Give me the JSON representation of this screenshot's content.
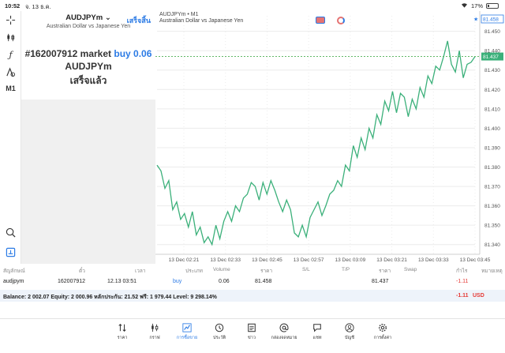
{
  "statusbar": {
    "time": "10:52",
    "date": "จ. 13 ธ.ค.",
    "battery": "17%"
  },
  "panel": {
    "symbol": "AUDJPYm",
    "description": "Australian Dollar vs Japanese Yen",
    "done_label": "เสร็จสิ้น",
    "order_prefix": "#162007912 market",
    "order_type": "buy",
    "order_volume": "0.06",
    "order_symbol": "AUDJPYm",
    "order_status": "เสร็จแล้ว"
  },
  "toolbar": {
    "timeframe": "M1"
  },
  "chart": {
    "title": "AUDJPYm • M1",
    "subtitle": "Australian Dollar vs Japanese Yen",
    "current_price": "81.437",
    "top_price_tag": "81.458",
    "colors": {
      "line": "#3bb07a",
      "grid": "#ececec",
      "price_line": "#4caf50",
      "tag": "#3bb07a"
    }
  },
  "chart_data": {
    "type": "line",
    "title": "",
    "xlabel": "",
    "ylabel": "",
    "x_ticks": [
      "13 Dec 02:21",
      "13 Dec 02:33",
      "13 Dec 02:45",
      "13 Dec 02:57",
      "13 Dec 03:09",
      "13 Dec 03:21",
      "13 Dec 03:33",
      "13 Dec 03:45"
    ],
    "y_ticks": [
      "81.450",
      "81.440",
      "81.430",
      "81.420",
      "81.410",
      "81.400",
      "81.390",
      "81.380",
      "81.370",
      "81.360",
      "81.350",
      "81.340"
    ],
    "ylim": [
      81.335,
      81.458
    ],
    "series": [
      {
        "values": [
          81.381,
          81.378,
          81.369,
          81.373,
          81.358,
          81.362,
          81.353,
          81.356,
          81.349,
          81.357,
          81.345,
          81.349,
          81.341,
          81.344,
          81.34,
          81.35,
          81.343,
          81.352,
          81.357,
          81.352,
          81.36,
          81.357,
          81.364,
          81.366,
          81.372,
          81.37,
          81.363,
          81.372,
          81.366,
          81.373,
          81.368,
          81.362,
          81.357,
          81.363,
          81.358,
          81.346,
          81.344,
          81.35,
          81.344,
          81.354,
          81.358,
          81.362,
          81.355,
          81.36,
          81.366,
          81.368,
          81.373,
          81.37,
          81.381,
          81.378,
          81.391,
          81.385,
          81.395,
          81.389,
          81.4,
          81.395,
          81.407,
          81.402,
          81.414,
          81.409,
          81.419,
          81.408,
          81.418,
          81.416,
          81.406,
          81.415,
          81.41,
          81.421,
          81.416,
          81.427,
          81.423,
          81.432,
          81.43,
          81.437,
          81.445,
          81.433,
          81.429,
          81.44,
          81.426,
          81.433,
          81.434,
          81.437
        ]
      }
    ]
  },
  "table": {
    "headers": [
      "สัญลักษณ์",
      "ตั๋ว",
      "เวลา",
      "ประเภท",
      "Volume",
      "ราคา",
      "S/L",
      "T/P",
      "ราคา",
      "Swap",
      "กำไร",
      "หมายเหตุ"
    ],
    "row": {
      "symbol": "audjpym",
      "ticket": "162007912",
      "time": "12.13 03:51",
      "type": "buy",
      "volume": "0.06",
      "price": "81.458",
      "sl": "",
      "tp": "",
      "current": "81.437",
      "swap": "",
      "profit": "-1.11",
      "comment": ""
    }
  },
  "balance": {
    "text": "Balance: 2 002.07 Equity: 2 000.96 หลักประกัน: 21.52 ฟรี: 1 979.44 Level: 9 298.14%",
    "profit": "-1.11",
    "currency": "USD"
  },
  "tabs": [
    {
      "label": "ราคา",
      "icon": "quotes-icon"
    },
    {
      "label": "กราฟ",
      "icon": "chart-candles-icon"
    },
    {
      "label": "การซื้อขาย",
      "icon": "trade-icon"
    },
    {
      "label": "ประวัติ",
      "icon": "history-icon"
    },
    {
      "label": "ข่าว",
      "icon": "news-icon"
    },
    {
      "label": "กล่องจดหมาย",
      "icon": "mailbox-icon"
    },
    {
      "label": "แชท",
      "icon": "chat-icon"
    },
    {
      "label": "บัญชี",
      "icon": "account-icon"
    },
    {
      "label": "การตั้งค่า",
      "icon": "settings-icon"
    }
  ]
}
